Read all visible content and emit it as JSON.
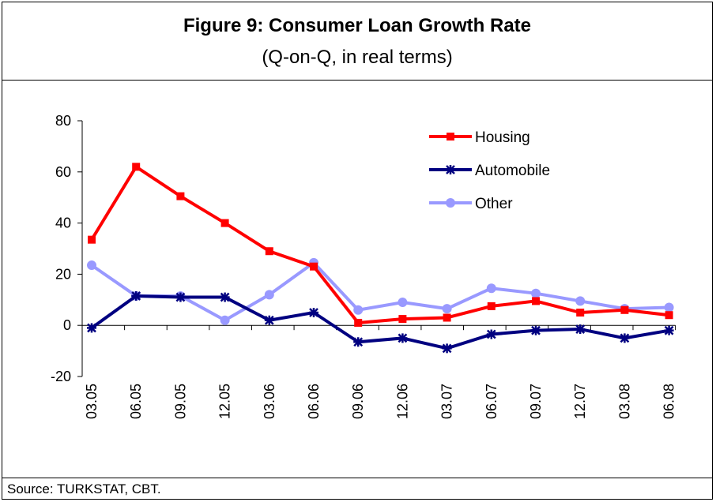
{
  "figure": {
    "title": "Figure 9: Consumer Loan Growth Rate",
    "subtitle": "(Q-on-Q, in real terms)",
    "source": "Source: TURKSTAT, CBT."
  },
  "chart_data": {
    "type": "line",
    "categories": [
      "03.05",
      "06.05",
      "09.05",
      "12.05",
      "03.06",
      "06.06",
      "09.06",
      "12.06",
      "03.07",
      "06.07",
      "09.07",
      "12.07",
      "03.08",
      "06.08"
    ],
    "ylim": [
      -20,
      80
    ],
    "yticks": [
      -20,
      0,
      20,
      40,
      60,
      80
    ],
    "legend_position": "top-right",
    "series": [
      {
        "name": "Housing",
        "color": "#ff0000",
        "marker": "square",
        "values": [
          33.5,
          62,
          50.5,
          40,
          29,
          23,
          1,
          2.5,
          3,
          7.5,
          9.5,
          5,
          6,
          4
        ]
      },
      {
        "name": "Automobile",
        "color": "#000080",
        "marker": "asterisk",
        "values": [
          -1,
          11.5,
          11,
          11,
          2,
          5,
          -6.5,
          -5,
          -9,
          -3.5,
          -2,
          -1.5,
          -5,
          -2
        ]
      },
      {
        "name": "Other",
        "color": "#9999ff",
        "marker": "circle",
        "values": [
          23.5,
          11.5,
          11.5,
          2,
          12,
          24.5,
          6,
          9,
          6.5,
          14.5,
          12.5,
          9.5,
          6.5,
          7
        ]
      }
    ]
  }
}
